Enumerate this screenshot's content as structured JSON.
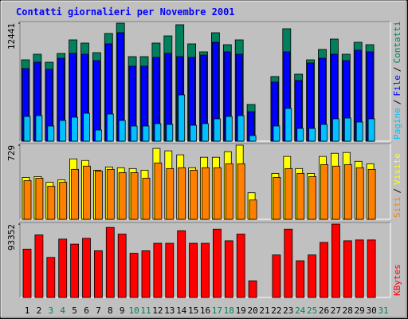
{
  "chart_data": [
    {
      "type": "bar",
      "title": "Contatti giornalieri per Novembre 2001",
      "ylim": [
        0,
        12441
      ],
      "yticks": [
        12441
      ],
      "legend_separator": "/",
      "series": [
        {
          "name": "Pagine",
          "color": "#00c0ff",
          "values": [
            2606,
            2690,
            1597,
            2186,
            2522,
            2942,
            1177,
            2858,
            2186,
            1597,
            1597,
            1849,
            1765,
            4875,
            1681,
            1849,
            2354,
            2606,
            2690,
            588,
            0,
            1597,
            3446,
            1345,
            1345,
            1765,
            2354,
            2438,
            2017,
            2354,
            0
          ]
        },
        {
          "name": "File",
          "color": "#0000ff",
          "values": [
            7649,
            8322,
            7565,
            8742,
            9247,
            9163,
            8490,
            10255,
            11432,
            7902,
            7902,
            8826,
            9247,
            8910,
            8826,
            9078,
            10423,
            9415,
            9163,
            3110,
            0,
            6220,
            9415,
            6389,
            8238,
            8742,
            9163,
            8490,
            9583,
            9415,
            0
          ]
        },
        {
          "name": "Contatti",
          "color": "#00805c",
          "values": [
            8574,
            9163,
            8322,
            9247,
            10676,
            10340,
            9331,
            11348,
            12441,
            8911,
            8911,
            10340,
            11096,
            12273,
            10256,
            9415,
            11432,
            10171,
            10676,
            3867,
            0,
            6809,
            11853,
            7061,
            8574,
            9667,
            10760,
            9163,
            10424,
            10171,
            0
          ]
        }
      ]
    },
    {
      "type": "bar",
      "ylim": [
        0,
        729
      ],
      "yticks": [
        729
      ],
      "legend_separator": "/",
      "series": [
        {
          "name": "Siti",
          "color": "#ff8000",
          "values": [
            380,
            404,
            325,
            364,
            491,
            523,
            475,
            491,
            459,
            459,
            404,
            554,
            499,
            507,
            483,
            507,
            507,
            546,
            546,
            190,
            0,
            412,
            499,
            451,
            420,
            538,
            523,
            538,
            507,
            491,
            0
          ]
        },
        {
          "name": "Visite",
          "color": "#ffff00",
          "values": [
            412,
            420,
            364,
            388,
            594,
            578,
            483,
            515,
            507,
            499,
            483,
            697,
            673,
            634,
            507,
            610,
            610,
            665,
            729,
            261,
            0,
            451,
            618,
            499,
            451,
            618,
            649,
            657,
            570,
            546,
            0
          ]
        }
      ]
    },
    {
      "type": "bar",
      "ylim": [
        0,
        93352
      ],
      "yticks": [
        93352
      ],
      "categories": [
        "1",
        "2",
        "3",
        "4",
        "5",
        "6",
        "7",
        "8",
        "9",
        "10",
        "11",
        "12",
        "13",
        "14",
        "15",
        "16",
        "17",
        "18",
        "19",
        "20",
        "21",
        "22",
        "23",
        "24",
        "25",
        "26",
        "27",
        "28",
        "29",
        "30",
        "31"
      ],
      "category_colors": [
        "#000000",
        "#000000",
        "#00805c",
        "#00805c",
        "#000000",
        "#000000",
        "#000000",
        "#000000",
        "#000000",
        "#00805c",
        "#00805c",
        "#000000",
        "#000000",
        "#000000",
        "#000000",
        "#000000",
        "#00805c",
        "#00805c",
        "#000000",
        "#000000",
        "#000000",
        "#000000",
        "#000000",
        "#00805c",
        "#00805c",
        "#000000",
        "#000000",
        "#000000",
        "#000000",
        "#000000",
        "#00805c"
      ],
      "series": [
        {
          "name": "KBytes",
          "color": "#ff0000",
          "values": [
            61538,
            79575,
            50928,
            74270,
            67904,
            75331,
            59416,
            89124,
            80636,
            56233,
            59416,
            68965,
            68965,
            84880,
            68965,
            68965,
            87002,
            72148,
            80636,
            21220,
            0,
            54111,
            87002,
            46684,
            54111,
            70026,
            93352,
            72148,
            73209,
            73209,
            0
          ]
        }
      ]
    }
  ]
}
